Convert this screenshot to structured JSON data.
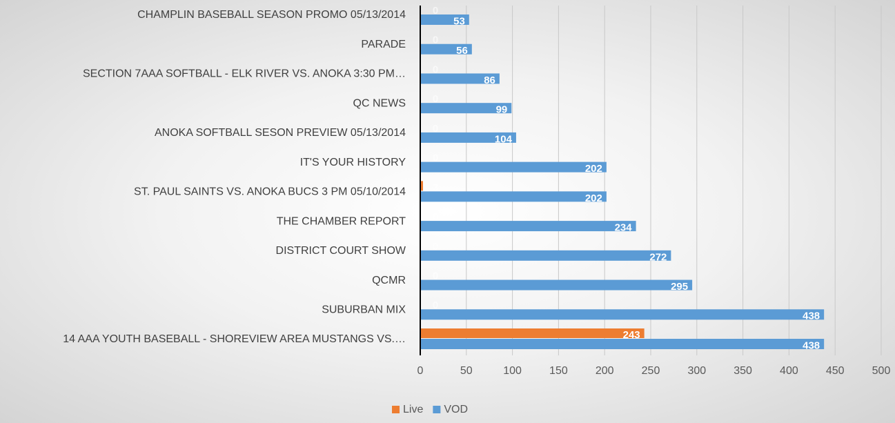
{
  "chart_data": {
    "type": "barh",
    "categories": [
      "CHAMPLIN BASEBALL SEASON PROMO 05/13/2014",
      "PARADE",
      "SECTION 7AAA SOFTBALL - ELK RIVER VS. ANOKA 3:30 PM…",
      "QC NEWS",
      "ANOKA SOFTBALL SESON PREVIEW 05/13/2014",
      "IT'S YOUR HISTORY",
      "ST. PAUL SAINTS VS. ANOKA BUCS 3 PM 05/10/2014",
      "THE CHAMBER REPORT",
      "DISTRICT COURT SHOW",
      "QCMR",
      "SUBURBAN MIX",
      "14 AAA YOUTH BASEBALL - SHOREVIEW AREA MUSTANGS VS.…"
    ],
    "series": [
      {
        "name": "Live",
        "color": "#ed7d31",
        "values": [
          0,
          0,
          0,
          0,
          0,
          0,
          3,
          0,
          0,
          0,
          0,
          243
        ]
      },
      {
        "name": "VOD",
        "color": "#5b9bd5",
        "values": [
          53,
          56,
          86,
          99,
          104,
          202,
          202,
          234,
          272,
          295,
          438,
          438
        ]
      }
    ],
    "xlim": [
      0,
      500
    ],
    "xticks": [
      0,
      50,
      100,
      150,
      200,
      250,
      300,
      350,
      400,
      450,
      500
    ],
    "grid": true,
    "legend": "bottom"
  }
}
